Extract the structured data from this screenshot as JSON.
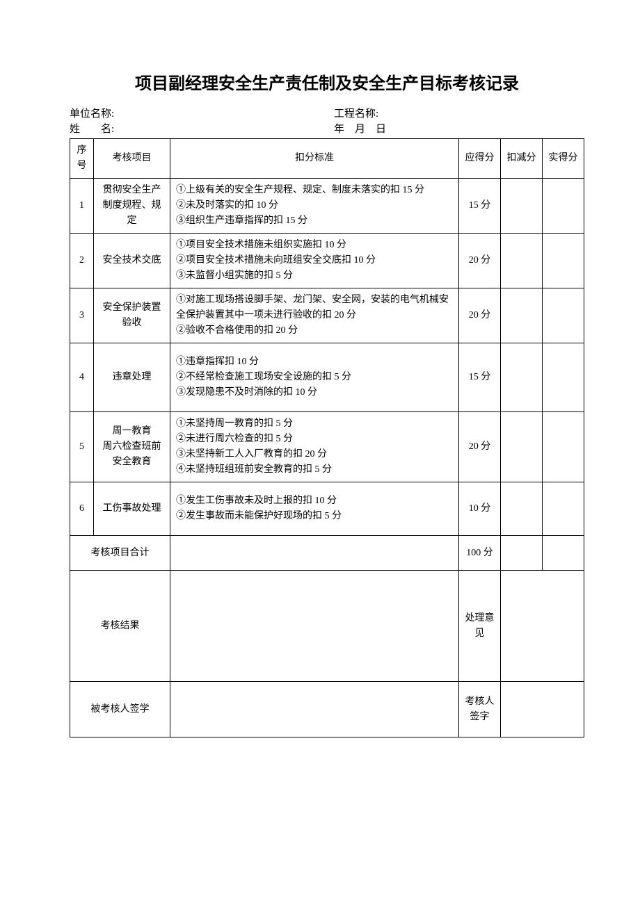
{
  "title": "项目副经理安全生产责任制及安全生产目标考核记录",
  "header": {
    "unit_label": "单位名称:",
    "project_label": "工程名称:",
    "name_label": "姓　　名:",
    "date_label": "年　月　日"
  },
  "columns": {
    "seq": "序号",
    "item": "考核项目",
    "criteria": "扣分标准",
    "due": "应得分",
    "deduct": "扣减分",
    "actual": "实得分"
  },
  "rows": [
    {
      "seq": "1",
      "item": "贯彻安全生产制度规程、规定",
      "criteria": "①上级有关的安全生产规程、规定、制度未落实的扣 15 分\n②未及时落实的扣 10 分\n③组织生产违章指挥的扣 15 分",
      "due": "15 分"
    },
    {
      "seq": "2",
      "item": "安全技术交底",
      "criteria": "①项目安全技术措施未组织实施扣 10 分\n②项目安全技术措施未向班组安全交底扣 10 分\n③未监督小组实施的扣 5 分",
      "due": "20 分"
    },
    {
      "seq": "3",
      "item": "安全保护装置验收",
      "criteria": "①对施工现场搭设脚手架、龙门架、安全网，安装的电气机械安全保护装置其中一项未进行验收的扣 20 分\n②验收不合格使用的扣 20 分",
      "due": "20 分"
    },
    {
      "seq": "4",
      "item": "违章处理",
      "criteria": "①违章指挥扣 10 分\n②不经常检查施工现场安全设施的扣 5 分\n③发现隐患不及时消除的扣 10 分",
      "due": "15 分"
    },
    {
      "seq": "5",
      "item": "周一教育\n周六检查班前安全教育",
      "criteria": "①未坚持周一教育的扣 5 分\n②未进行周六检查的扣 5 分\n③未坚持新工人入厂教育的扣 20 分\n④未坚持班组班前安全教育的扣 5 分",
      "due": "20 分"
    },
    {
      "seq": "6",
      "item": "工伤事故处理",
      "criteria": "①发生工伤事故未及时上报的扣 10 分\n②发生事故而未能保护好现场的扣 5 分",
      "due": "10 分"
    }
  ],
  "footer": {
    "total_label": "考核项目合计",
    "total_due": "100 分",
    "result_label": "考核结果",
    "opinion_label": "处理意见",
    "assessee_label": "被考核人签学",
    "assessor_label": "考核人签字"
  }
}
